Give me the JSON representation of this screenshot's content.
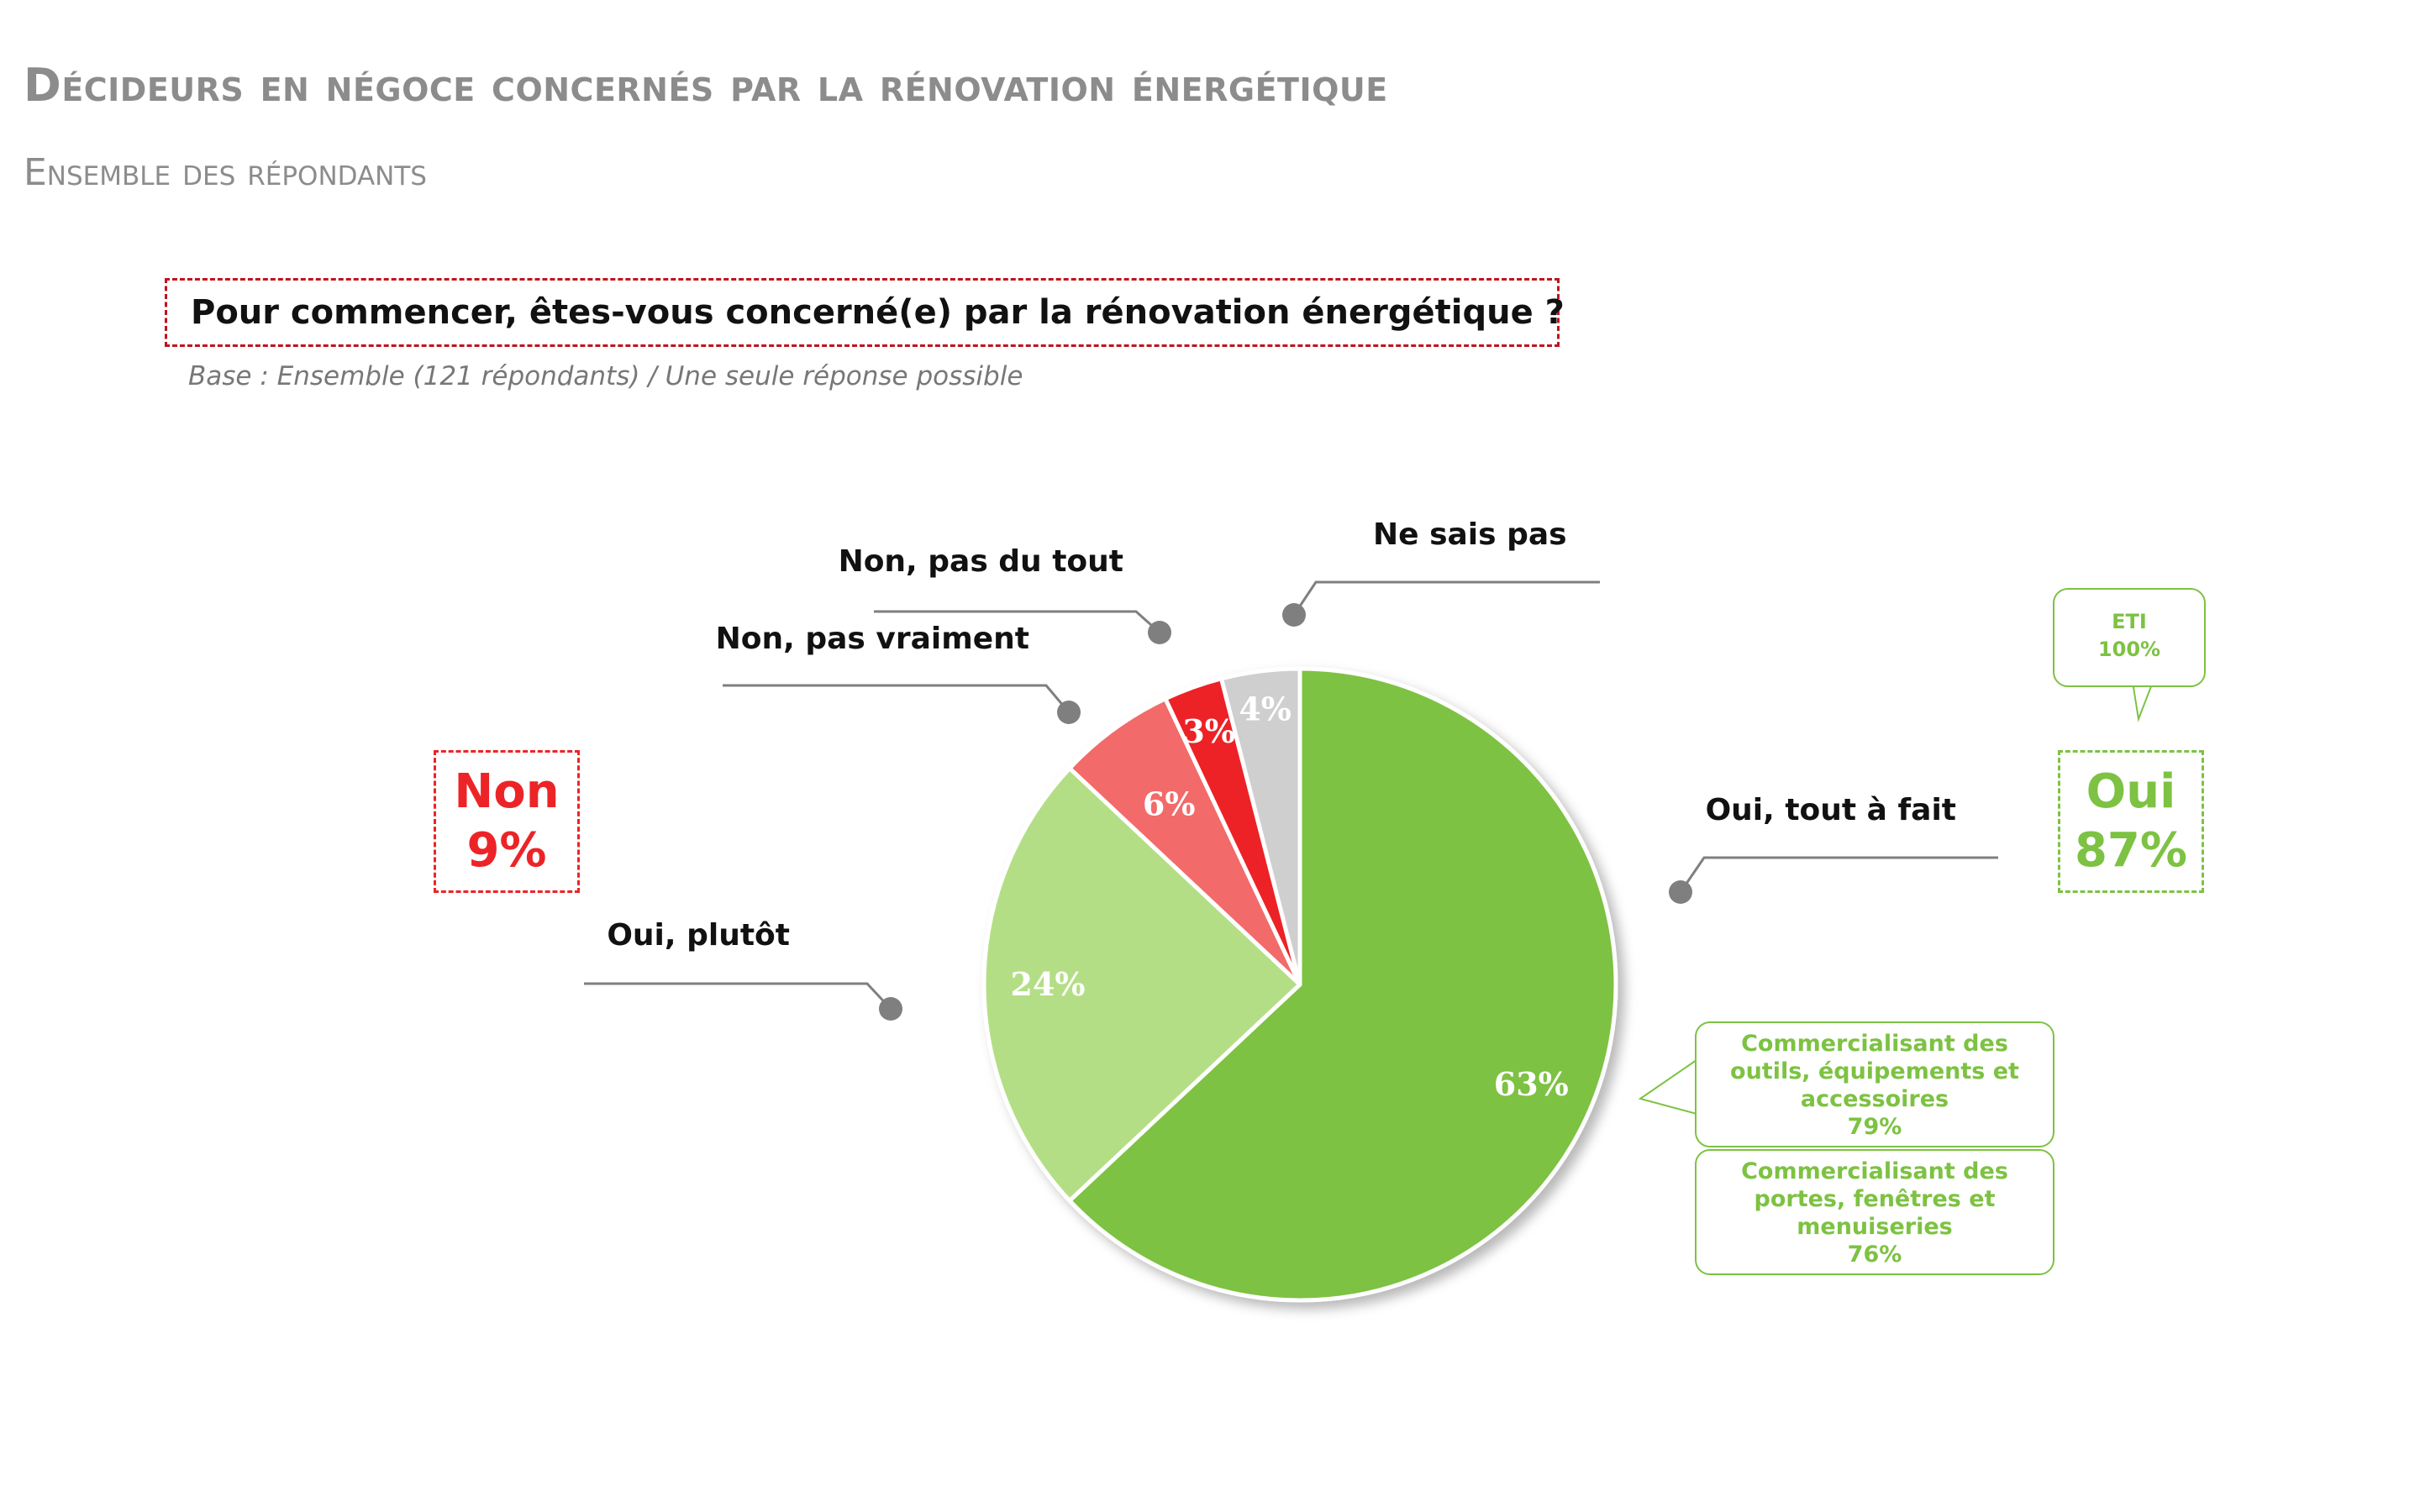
{
  "header": {
    "title": "Décideurs en négoce concernés par la rénovation énergétique",
    "subtitle": "Ensemble des répondants"
  },
  "question": {
    "text": "Pour commencer, êtes-vous concerné(e) par la rénovation énergétique ?",
    "base": "Base : Ensemble (121 répondants) / Une seule réponse possible"
  },
  "chart_data": {
    "type": "pie",
    "title": "",
    "slices": [
      {
        "label": "Oui, tout à fait",
        "value": 63,
        "value_label": "63%",
        "color": "#7dc242"
      },
      {
        "label": "Oui, plutôt",
        "value": 24,
        "value_label": "24%",
        "color": "#b4de86"
      },
      {
        "label": "Non, pas vraiment",
        "value": 6,
        "value_label": "6%",
        "color": "#f36a6a"
      },
      {
        "label": "Non, pas du tout",
        "value": 3,
        "value_label": "3%",
        "color": "#ec2427"
      },
      {
        "label": "Ne sais pas",
        "value": 4,
        "value_label": "4%",
        "color": "#cfcfcf"
      }
    ]
  },
  "summary": {
    "non_label": "Non",
    "non_value": "9%",
    "oui_label": "Oui",
    "oui_value": "87%"
  },
  "callouts": {
    "eti": {
      "line1": "ETI",
      "line2": "100%"
    },
    "outils": {
      "line1": "Commercialisant des",
      "line2": "outils, équipements et",
      "line3": "accessoires",
      "line4": "79%"
    },
    "portes": {
      "line1": "Commercialisant des",
      "line2": "portes, fenêtres et",
      "line3": "menuiseries",
      "line4": "76%"
    }
  },
  "colors": {
    "green": "#7dc242",
    "light_green": "#b4de86",
    "salmon": "#f36a6a",
    "red": "#ec2427",
    "grey": "#cfcfcf",
    "title_grey": "#8c8c8c"
  }
}
